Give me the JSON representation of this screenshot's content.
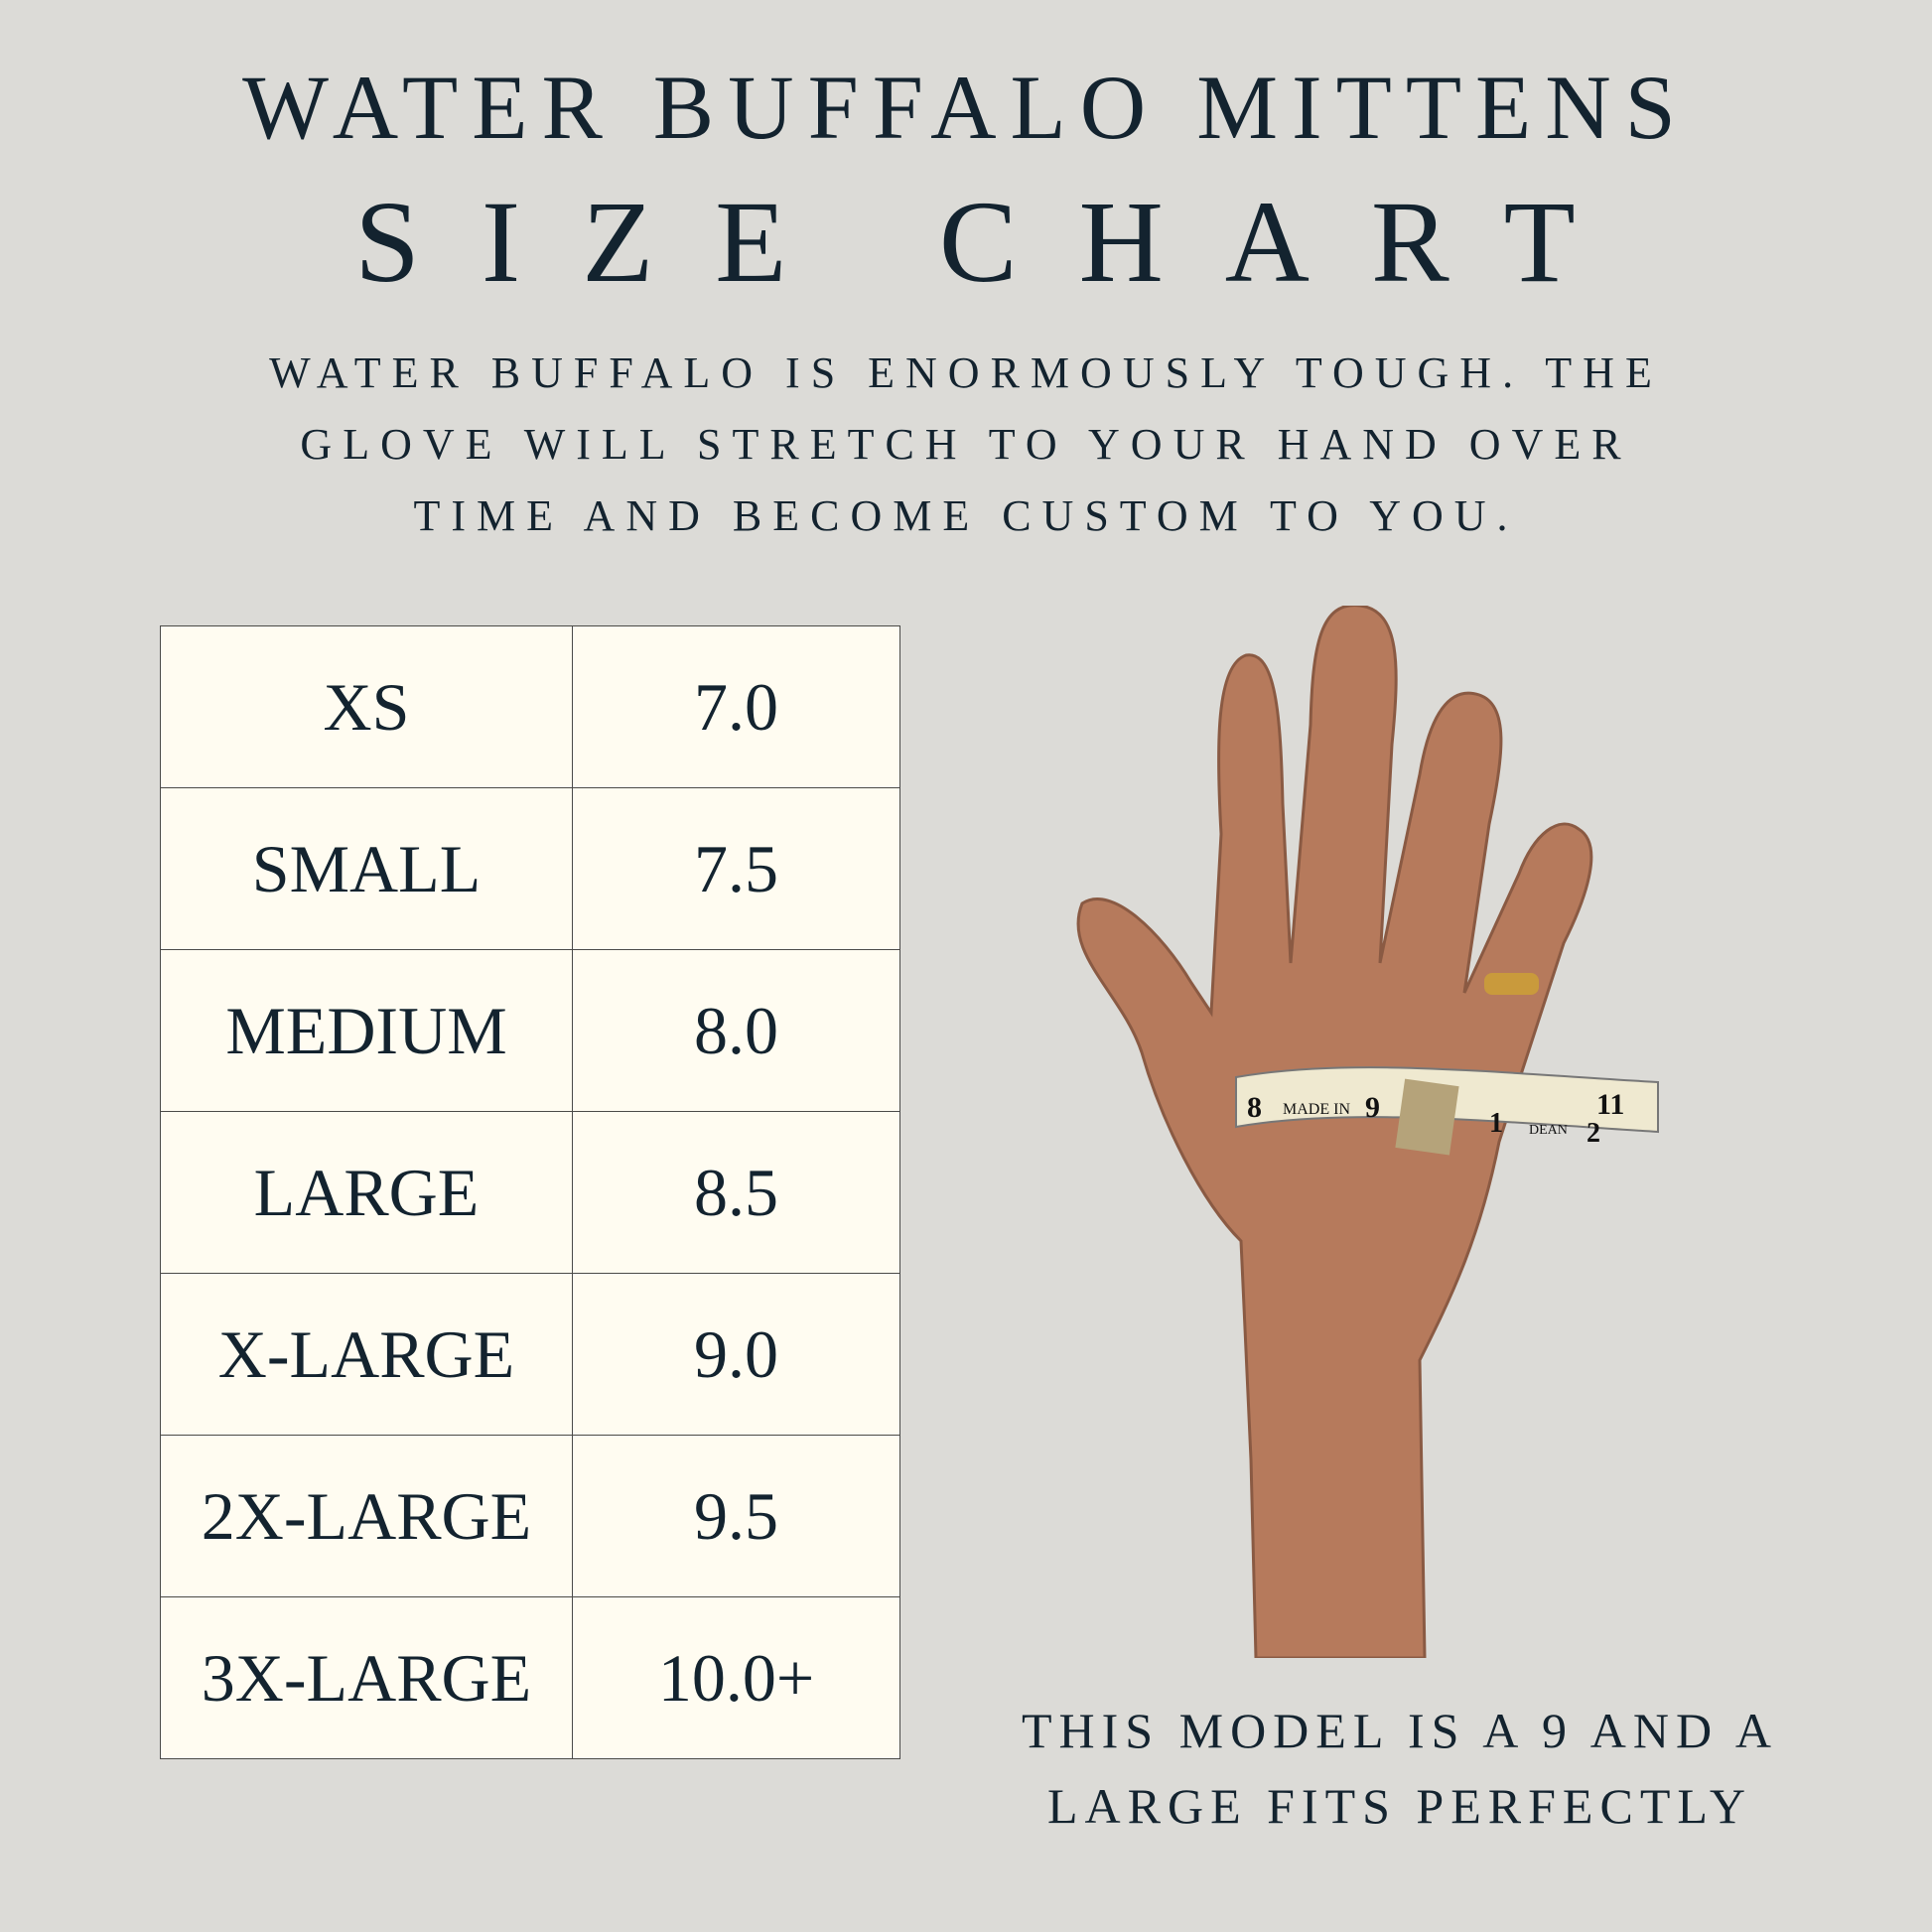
{
  "title": {
    "line1": "WATER BUFFALO MITTENS",
    "line2": "SIZE CHART"
  },
  "description": [
    "WATER BUFFALO IS ENORMOUSLY TOUGH. THE",
    "GLOVE WILL STRETCH TO YOUR HAND OVER",
    "TIME AND BECOME CUSTOM TO YOU."
  ],
  "size_table": [
    {
      "size": "XS",
      "measurement": "7.0"
    },
    {
      "size": "SMALL",
      "measurement": "7.5"
    },
    {
      "size": "MEDIUM",
      "measurement": "8.0"
    },
    {
      "size": "LARGE",
      "measurement": "8.5"
    },
    {
      "size": "X-LARGE",
      "measurement": "9.0"
    },
    {
      "size": "2X-LARGE",
      "measurement": "9.5"
    },
    {
      "size": "3X-LARGE",
      "measurement": "10.0+"
    }
  ],
  "photo": {
    "tape_labels": [
      "8",
      "MADE IN",
      "9",
      "11",
      "1",
      "DEAN",
      "2"
    ]
  },
  "caption": [
    "THIS MODEL IS A 9 AND A",
    "LARGE FITS PERFECTLY"
  ],
  "colors": {
    "background": "#dcdbd7",
    "cell": "#fffcf1",
    "text": "#13232f"
  }
}
